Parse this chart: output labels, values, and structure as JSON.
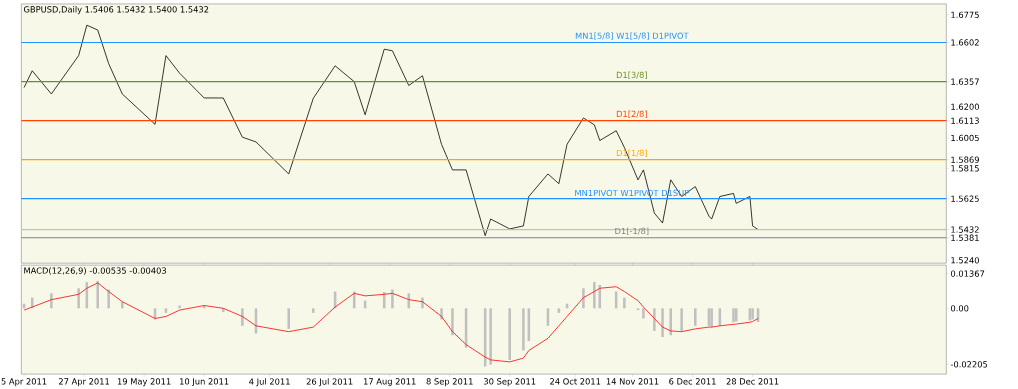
{
  "chart_data": [
    {
      "type": "line",
      "title": "GBPUSD,Daily  1.5406 1.5432 1.5400 1.5432",
      "color": "#000000",
      "tick_labels": "y",
      "x": [
        "2011-04-05",
        "2011-04-08",
        "2011-04-15",
        "2011-04-25",
        "2011-04-28",
        "2011-05-02",
        "2011-05-06",
        "2011-05-11",
        "2011-05-23",
        "2011-05-27",
        "2011-06-01",
        "2011-06-10",
        "2011-06-17",
        "2011-06-24",
        "2011-06-29",
        "2011-07-11",
        "2011-07-20",
        "2011-07-28",
        "2011-08-04",
        "2011-08-08",
        "2011-08-15",
        "2011-08-18",
        "2011-08-24",
        "2011-08-29",
        "2011-09-05",
        "2011-09-09",
        "2011-09-14",
        "2011-09-21",
        "2011-09-23",
        "2011-09-30",
        "2011-10-05",
        "2011-10-07",
        "2011-10-14",
        "2011-10-18",
        "2011-10-21",
        "2011-10-27",
        "2011-10-31",
        "2011-11-02",
        "2011-11-08",
        "2011-11-11",
        "2011-11-16",
        "2011-11-18",
        "2011-11-22",
        "2011-11-25",
        "2011-11-28",
        "2011-12-02",
        "2011-12-07",
        "2011-12-12",
        "2011-12-13",
        "2011-12-16",
        "2011-12-21",
        "2011-12-22",
        "2011-12-27",
        "2011-12-28",
        "2011-12-30"
      ],
      "values": [
        1.632,
        1.6425,
        1.628,
        1.652,
        1.671,
        1.668,
        1.647,
        1.628,
        1.609,
        1.652,
        1.641,
        1.6255,
        1.6255,
        1.601,
        1.598,
        1.578,
        1.6253,
        1.6456,
        1.6357,
        1.615,
        1.656,
        1.655,
        1.6333,
        1.6394,
        1.5965,
        1.5805,
        1.5805,
        1.5394,
        1.5498,
        1.5436,
        1.5455,
        1.5639,
        1.578,
        1.5719,
        1.5965,
        1.613,
        1.6087,
        1.5989,
        1.605,
        1.5946,
        1.5743,
        1.5805,
        1.5535,
        1.5473,
        1.5743,
        1.5639,
        1.5701,
        1.5516,
        1.5498,
        1.5639,
        1.5658,
        1.5596,
        1.5639,
        1.5455,
        1.5432
      ],
      "xlim": [
        "2011-04-04",
        "2012-03-08"
      ],
      "xticks": [
        "2011-04-05",
        "2011-04-27",
        "2011-05-19",
        "2011-06-10",
        "2011-07-04",
        "2011-07-26",
        "2011-08-17",
        "2011-09-08",
        "2011-09-30",
        "2011-10-24",
        "2011-11-14",
        "2011-12-06",
        "2011-12-28"
      ],
      "ylim": [
        1.5222,
        1.6843
      ],
      "yticks": [
        {
          "value": 1.6775,
          "label": "1.6775"
        },
        {
          "value": 1.6602,
          "label": "1.6602"
        },
        {
          "value": 1.6357,
          "label": "1.6357"
        },
        {
          "value": 1.62,
          "label": "1.6200"
        },
        {
          "value": 1.6113,
          "label": "1.6113"
        },
        {
          "value": 1.6005,
          "label": "1.6005"
        },
        {
          "value": 1.5869,
          "label": "1.5869"
        },
        {
          "value": 1.5815,
          "label": "1.5815"
        },
        {
          "value": 1.5625,
          "label": "1.5625"
        },
        {
          "value": 1.5432,
          "label": "1.5432"
        },
        {
          "value": 1.5381,
          "label": "1.5381"
        },
        {
          "value": 1.524,
          "label": "1.5240"
        }
      ],
      "ref_lines": [
        {
          "axis": "y",
          "value": 1.6602,
          "label": "MN1[5/8] W1[5/8] D1PIVOT",
          "color": "#1e90ff"
        },
        {
          "axis": "y",
          "value": 1.6357,
          "label": "D1[3/8]",
          "color": "#6b8e23"
        },
        {
          "axis": "y",
          "value": 1.6113,
          "label": "D1[2/8]",
          "color": "#ff4500"
        },
        {
          "axis": "y",
          "value": 1.5869,
          "label": "D1[1/8]",
          "color": "#ffa500"
        },
        {
          "axis": "y",
          "value": 1.5625,
          "label": "MN1PIVOT W1PIVOT D1SUP",
          "color": "#1e90ff"
        },
        {
          "axis": "y",
          "value": 1.5432,
          "color": "#c0c0c0"
        },
        {
          "axis": "y",
          "value": 1.5381,
          "label": "D1[-1/8]",
          "color": "#808080"
        }
      ]
    },
    {
      "type": "bar",
      "title": "MACD(12,26,9) -0.00535 -0.00403",
      "x": [
        "2011-04-05",
        "2011-04-08",
        "2011-04-15",
        "2011-04-25",
        "2011-04-28",
        "2011-05-02",
        "2011-05-06",
        "2011-05-11",
        "2011-05-23",
        "2011-05-27",
        "2011-06-01",
        "2011-06-10",
        "2011-06-17",
        "2011-06-24",
        "2011-06-29",
        "2011-07-11",
        "2011-07-20",
        "2011-07-28",
        "2011-08-04",
        "2011-08-08",
        "2011-08-15",
        "2011-08-18",
        "2011-08-24",
        "2011-08-29",
        "2011-09-05",
        "2011-09-09",
        "2011-09-14",
        "2011-09-21",
        "2011-09-23",
        "2011-09-30",
        "2011-10-05",
        "2011-10-07",
        "2011-10-14",
        "2011-10-18",
        "2011-10-21",
        "2011-10-27",
        "2011-10-31",
        "2011-11-02",
        "2011-11-08",
        "2011-11-11",
        "2011-11-16",
        "2011-11-18",
        "2011-11-22",
        "2011-11-25",
        "2011-11-28",
        "2011-12-02",
        "2011-12-07",
        "2011-12-12",
        "2011-12-13",
        "2011-12-16",
        "2011-12-21",
        "2011-12-22",
        "2011-12-27",
        "2011-12-28",
        "2011-12-30"
      ],
      "series": [
        {
          "type": "bar",
          "color": "#c0c0c0",
          "values": [
            0.0018,
            0.0042,
            0.0059,
            0.0079,
            0.0103,
            0.0108,
            0.0074,
            0.0026,
            -0.0044,
            -0.0018,
            0.0011,
            0.0011,
            -0.0015,
            -0.0069,
            -0.0099,
            -0.0081,
            -0.0018,
            0.0066,
            0.0066,
            0.003,
            0.0064,
            0.0074,
            0.0059,
            0.0042,
            -0.0044,
            -0.0106,
            -0.0155,
            -0.0229,
            -0.0222,
            -0.0203,
            -0.0166,
            -0.0129,
            -0.0069,
            -0.0018,
            0.0018,
            0.0079,
            0.0103,
            0.0092,
            0.0066,
            0.0042,
            -0.0007,
            -0.004,
            -0.0089,
            -0.0113,
            -0.0106,
            -0.0089,
            -0.0069,
            -0.0069,
            -0.0074,
            -0.0069,
            -0.0055,
            -0.0052,
            -0.0048,
            -0.0044,
            -0.0054
          ]
        },
        {
          "type": "line",
          "color": "#ff0000",
          "values": [
            -0.0007,
            0.0005,
            0.0034,
            0.0055,
            0.0079,
            0.01,
            0.0066,
            0.0026,
            -0.004,
            -0.0032,
            -0.0007,
            0.0011,
            0.0,
            -0.0032,
            -0.0069,
            -0.0092,
            -0.0074,
            0.0005,
            0.0059,
            0.0049,
            0.0055,
            0.0059,
            0.0034,
            0.0026,
            -0.0032,
            -0.0092,
            -0.0143,
            -0.0192,
            -0.0203,
            -0.0211,
            -0.0196,
            -0.0166,
            -0.0118,
            -0.0069,
            -0.0032,
            0.0042,
            0.0066,
            0.0079,
            0.0085,
            0.0066,
            0.003,
            0.0005,
            -0.004,
            -0.0074,
            -0.0089,
            -0.0092,
            -0.0081,
            -0.0074,
            -0.0074,
            -0.0069,
            -0.0063,
            -0.0062,
            -0.0055,
            -0.0052,
            -0.004
          ]
        }
      ],
      "xlim": [
        "2011-04-04",
        "2012-03-08"
      ],
      "xticks": [
        {
          "value": "2011-04-05",
          "label": "5 Apr 2011"
        },
        {
          "value": "2011-04-27",
          "label": "27 Apr 2011"
        },
        {
          "value": "2011-05-19",
          "label": "19 May 2011"
        },
        {
          "value": "2011-06-10",
          "label": "10 Jun 2011"
        },
        {
          "value": "2011-07-04",
          "label": "4 Jul 2011"
        },
        {
          "value": "2011-07-26",
          "label": "26 Jul 2011"
        },
        {
          "value": "2011-08-17",
          "label": "17 Aug 2011"
        },
        {
          "value": "2011-09-08",
          "label": "8 Sep 2011"
        },
        {
          "value": "2011-09-30",
          "label": "30 Sep 2011"
        },
        {
          "value": "2011-10-24",
          "label": "24 Oct 2011"
        },
        {
          "value": "2011-11-14",
          "label": "14 Nov 2011"
        },
        {
          "value": "2011-12-06",
          "label": "6 Dec 2011"
        },
        {
          "value": "2011-12-28",
          "label": "28 Dec 2011"
        }
      ],
      "ylim": [
        -0.0259,
        0.017
      ],
      "yticks": [
        0.01367,
        {
          "value": 0,
          "label": "0.00"
        },
        -0.02205
      ]
    }
  ]
}
